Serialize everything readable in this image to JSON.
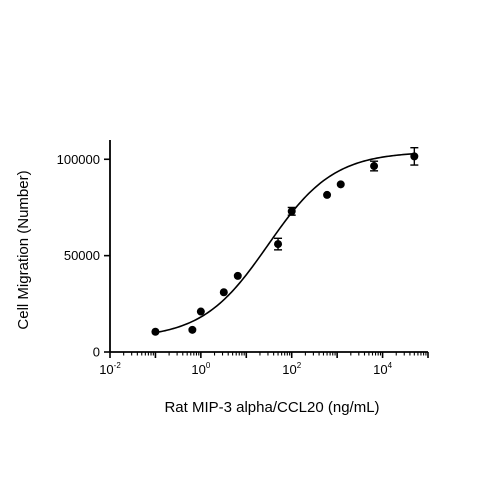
{
  "chart_data": {
    "type": "scatter",
    "xlabel": "Rat MIP-3 alpha/CCL20 (ng/mL)",
    "ylabel": "Cell Migration (Number)",
    "x_scale": "log",
    "xlim": [
      0.01,
      100000
    ],
    "ylim": [
      0,
      110000
    ],
    "x_ticks": [
      {
        "value": 0.01,
        "base": "10",
        "exp": "-2"
      },
      {
        "value": 1,
        "base": "10",
        "exp": "0"
      },
      {
        "value": 100,
        "base": "10",
        "exp": "2"
      },
      {
        "value": 10000,
        "base": "10",
        "exp": "4"
      }
    ],
    "y_ticks": [
      {
        "value": 0,
        "label": "0"
      },
      {
        "value": 50000,
        "label": "50000"
      },
      {
        "value": 100000,
        "label": "100000"
      }
    ],
    "grid": false,
    "points": [
      {
        "x": 0.1,
        "y": 10500,
        "err": 0
      },
      {
        "x": 0.65,
        "y": 11500,
        "err": 0
      },
      {
        "x": 1.0,
        "y": 21000,
        "err": 0
      },
      {
        "x": 3.2,
        "y": 31000,
        "err": 0
      },
      {
        "x": 6.5,
        "y": 39500,
        "err": 0
      },
      {
        "x": 50,
        "y": 56000,
        "err": 3000
      },
      {
        "x": 100,
        "y": 73000,
        "err": 2000
      },
      {
        "x": 600,
        "y": 81500,
        "err": 0
      },
      {
        "x": 1200,
        "y": 87000,
        "err": 0
      },
      {
        "x": 6500,
        "y": 96500,
        "err": 2500
      },
      {
        "x": 50000,
        "y": 101500,
        "err": 4500
      }
    ],
    "fit": {
      "model": "four-parameter logistic",
      "bottom": 7000,
      "top": 104000,
      "ec50": 30,
      "hill": 0.6,
      "x_range": [
        0.1,
        50000
      ]
    }
  }
}
